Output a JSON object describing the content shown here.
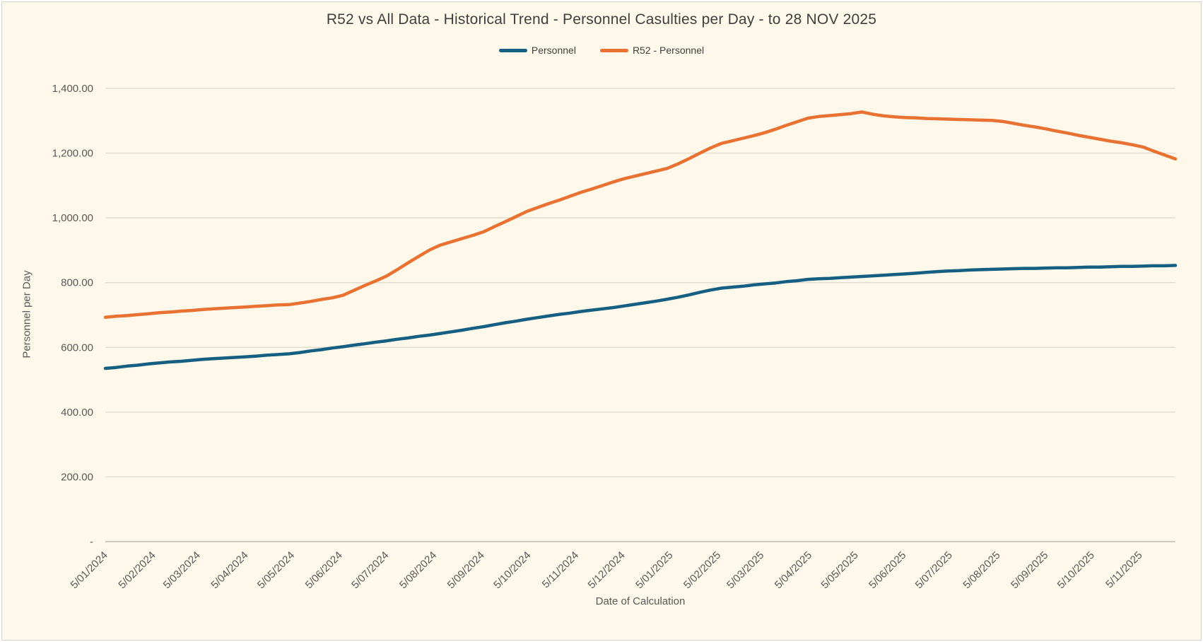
{
  "title": "R52 vs All Data - Historical Trend - Personnel Casulties per Day - to 28 NOV 2025",
  "legend": {
    "items": [
      {
        "label": "Personnel",
        "color": "#156082"
      },
      {
        "label": "R52 - Personnel",
        "color": "#E97132"
      }
    ]
  },
  "colors": {
    "background": "#FDF8EA",
    "frame_border": "#D3D1CB",
    "gridline": "#DBD8CF",
    "axis_line": "#BFBDB5",
    "title_text": "#3F3F3F",
    "axis_text": "#595959",
    "series_personnel": "#156082",
    "series_r52": "#E97132"
  },
  "chart_data": {
    "type": "line",
    "title": "R52 vs All Data - Historical Trend - Personnel Casulties per Day - to 28 NOV 2025",
    "xlabel": "Date of Calculation",
    "ylabel": "Personnel per Day",
    "ylim": [
      0,
      1400
    ],
    "y_tick_step": 200,
    "grid": true,
    "legend_position": "top",
    "y_tick_labels": [
      "1,400.00",
      "1,200.00",
      "1,000.00",
      "800.00",
      "600.00",
      "400.00",
      "200.00",
      "-"
    ],
    "y_tick_values": [
      1400,
      1200,
      1000,
      800,
      600,
      400,
      200,
      0
    ],
    "x_tick_labels": [
      "5/01/2024",
      "5/02/2024",
      "5/03/2024",
      "5/04/2024",
      "5/05/2024",
      "5/06/2024",
      "5/07/2024",
      "5/08/2024",
      "5/09/2024",
      "5/10/2024",
      "5/11/2024",
      "5/12/2024",
      "5/01/2025",
      "5/02/2025",
      "5/03/2025",
      "5/04/2025",
      "5/05/2025",
      "5/06/2025",
      "5/07/2025",
      "5/08/2025",
      "5/09/2025",
      "5/10/2025",
      "5/11/2025"
    ],
    "x_tick_day_offsets": [
      0,
      31,
      60,
      91,
      121,
      152,
      182,
      213,
      244,
      274,
      305,
      335,
      366,
      397,
      425,
      456,
      486,
      517,
      547,
      578,
      609,
      639,
      670
    ],
    "x_range_note": "weekly data points, day offsets 0 to 693 from 5/01/2024 through 28/11/2025",
    "x_total_days": 693,
    "x_point_interval_days": 7,
    "series": [
      {
        "name": "Personnel",
        "color": "#156082",
        "values": [
          535,
          538,
          542,
          545,
          549,
          552,
          555,
          557,
          560,
          563,
          565,
          567,
          569,
          571,
          573,
          576,
          578,
          580,
          584,
          589,
          593,
          598,
          602,
          607,
          611,
          616,
          620,
          625,
          629,
          634,
          638,
          643,
          648,
          653,
          659,
          664,
          670,
          676,
          681,
          687,
          692,
          697,
          702,
          706,
          711,
          715,
          719,
          723,
          728,
          733,
          738,
          743,
          749,
          755,
          762,
          770,
          777,
          783,
          786,
          789,
          793,
          796,
          799,
          803,
          806,
          810,
          812,
          813,
          815,
          817,
          819,
          821,
          823,
          825,
          827,
          829,
          832,
          834,
          836,
          837,
          839,
          840,
          841,
          842,
          843,
          844,
          844,
          845,
          846,
          846,
          847,
          848,
          848,
          849,
          850,
          850,
          851,
          852,
          852,
          853
        ]
      },
      {
        "name": "R52 - Personnel",
        "color": "#E97132",
        "values": [
          693,
          696,
          698,
          701,
          704,
          707,
          709,
          712,
          714,
          717,
          719,
          721,
          723,
          725,
          727,
          729,
          731,
          732,
          737,
          742,
          748,
          753,
          761,
          776,
          791,
          805,
          820,
          840,
          861,
          881,
          901,
          916,
          926,
          936,
          946,
          957,
          973,
          988,
          1004,
          1020,
          1032,
          1044,
          1055,
          1067,
          1079,
          1089,
          1100,
          1111,
          1121,
          1129,
          1137,
          1145,
          1153,
          1167,
          1183,
          1200,
          1216,
          1230,
          1238,
          1246,
          1254,
          1263,
          1274,
          1286,
          1297,
          1308,
          1313,
          1316,
          1319,
          1322,
          1327,
          1320,
          1315,
          1312,
          1310,
          1309,
          1307,
          1306,
          1305,
          1304,
          1303,
          1302,
          1301,
          1298,
          1292,
          1286,
          1281,
          1275,
          1268,
          1262,
          1255,
          1249,
          1243,
          1237,
          1232,
          1226,
          1219,
          1206,
          1194,
          1182
        ]
      }
    ]
  }
}
